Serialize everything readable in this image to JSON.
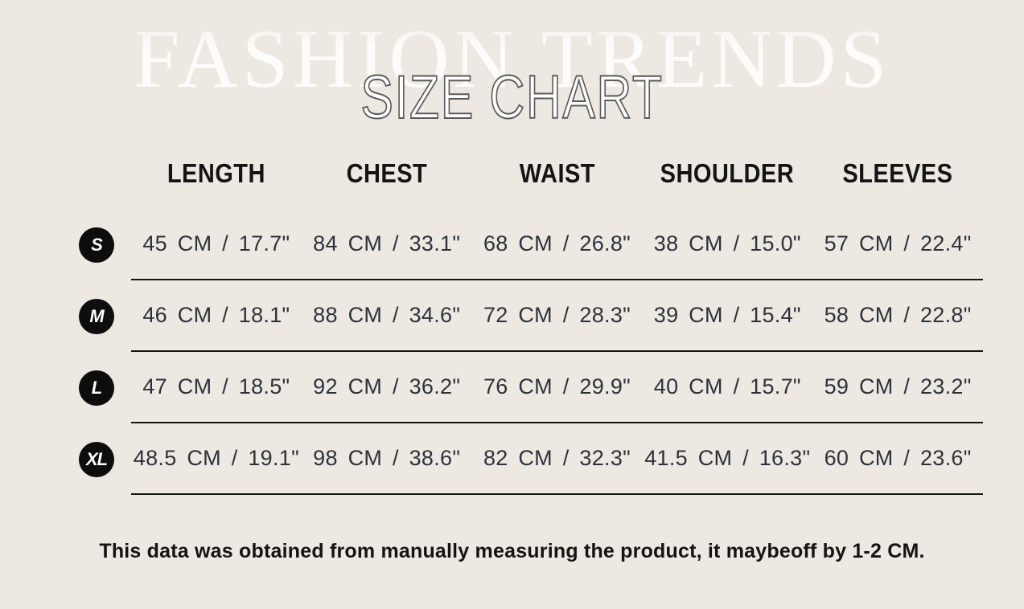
{
  "header": {
    "watermark": "FASHION TRENDS",
    "title": "SIZE CHART"
  },
  "chart_data": {
    "type": "table",
    "title": "SIZE CHART",
    "watermark": "FASHION TRENDS",
    "columns": [
      "LENGTH",
      "CHEST",
      "WAIST",
      "SHOULDER",
      "SLEEVES"
    ],
    "size_labels": [
      "S",
      "M",
      "L",
      "XL"
    ],
    "units": [
      "CM",
      "inches"
    ],
    "rows": [
      {
        "size": "S",
        "cells": [
          "45 CM / 17.7\"",
          "84 CM / 33.1\"",
          "68 CM / 26.8\"",
          "38 CM / 15.0\"",
          "57 CM / 22.4\""
        ],
        "cm": [
          45,
          84,
          68,
          38,
          57
        ],
        "inches": [
          17.7,
          33.1,
          26.8,
          15.0,
          22.4
        ]
      },
      {
        "size": "M",
        "cells": [
          "46 CM / 18.1\"",
          "88 CM / 34.6\"",
          "72 CM / 28.3\"",
          "39 CM / 15.4\"",
          "58 CM / 22.8\""
        ],
        "cm": [
          46,
          88,
          72,
          39,
          58
        ],
        "inches": [
          18.1,
          34.6,
          28.3,
          15.4,
          22.8
        ]
      },
      {
        "size": "L",
        "cells": [
          "47 CM / 18.5\"",
          "92 CM / 36.2\"",
          "76 CM / 29.9\"",
          "40 CM / 15.7\"",
          "59 CM / 23.2\""
        ],
        "cm": [
          47,
          92,
          76,
          40,
          59
        ],
        "inches": [
          18.5,
          36.2,
          29.9,
          15.7,
          23.2
        ]
      },
      {
        "size": "XL",
        "cells": [
          "48.5 CM / 19.1\"",
          "98 CM / 38.6\"",
          "82 CM / 32.3\"",
          "41.5 CM / 16.3\"",
          "60 CM / 23.6\""
        ],
        "cm": [
          48.5,
          98,
          82,
          41.5,
          60
        ],
        "inches": [
          19.1,
          38.6,
          32.3,
          16.3,
          23.6
        ]
      }
    ]
  },
  "note": "This data was obtained from manually measuring the product, it maybeoff by 1-2 CM.",
  "colors": {
    "background": "#EDE9E2",
    "heading_text": "#141414",
    "value_text": "#2D323A",
    "badge_background": "#0D0D0D",
    "badge_text": "#FFFFFF",
    "separator_line": "#141414",
    "title_fill": "#FFFFFF",
    "title_outline": "#5A5A5A",
    "watermark_text": "#FFFFFF"
  }
}
